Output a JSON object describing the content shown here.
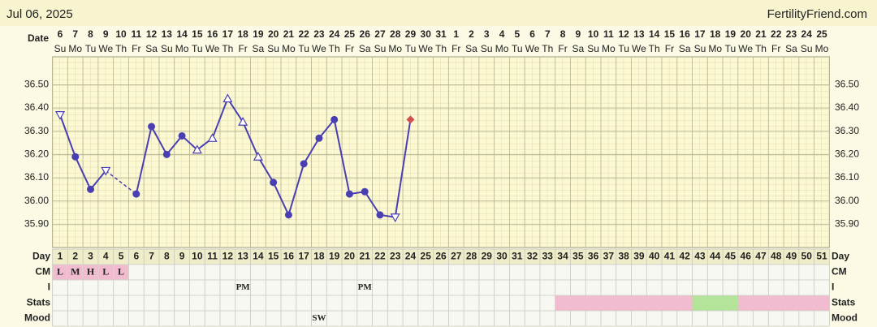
{
  "chart_data": {
    "type": "line",
    "title": "Jul 06, 2025",
    "site": "FertilityFriend.com",
    "date_label": "Date",
    "row_labels": [
      "Day",
      "CM",
      "I",
      "Stats",
      "Mood"
    ],
    "categories": [
      1,
      2,
      3,
      4,
      5,
      6,
      7,
      8,
      9,
      10,
      11,
      12,
      13,
      14,
      15,
      16,
      17,
      18,
      19,
      20,
      21,
      22,
      23,
      24,
      25,
      26,
      27,
      28,
      29,
      30,
      31,
      32,
      33,
      34,
      35,
      36,
      37,
      38,
      39,
      40,
      41,
      42,
      43,
      44,
      45,
      46,
      47,
      48,
      49,
      50,
      51
    ],
    "dates": [
      "6",
      "7",
      "8",
      "9",
      "10",
      "11",
      "12",
      "13",
      "14",
      "15",
      "16",
      "17",
      "18",
      "19",
      "20",
      "21",
      "22",
      "23",
      "24",
      "25",
      "26",
      "27",
      "28",
      "29",
      "30",
      "31",
      "1",
      "2",
      "3",
      "4",
      "5",
      "6",
      "7",
      "8",
      "9",
      "10",
      "11",
      "12",
      "13",
      "14",
      "15",
      "16",
      "17",
      "18",
      "19",
      "20",
      "21",
      "22",
      "23",
      "24",
      "25"
    ],
    "weekdays": [
      "Su",
      "Mo",
      "Tu",
      "We",
      "Th",
      "Fr",
      "Sa",
      "Su",
      "Mo",
      "Tu",
      "We",
      "Th",
      "Fr",
      "Sa",
      "Su",
      "Mo",
      "Tu",
      "We",
      "Th",
      "Fr",
      "Sa",
      "Su",
      "Mo",
      "Tu",
      "We",
      "Th",
      "Fr",
      "Sa",
      "Su",
      "Mo",
      "Tu",
      "We",
      "Th",
      "Fr",
      "Sa",
      "Su",
      "Mo",
      "Tu",
      "We",
      "Th",
      "Fr",
      "Sa",
      "Su",
      "Mo",
      "Tu",
      "We",
      "Th",
      "Fr",
      "Sa",
      "Su",
      "Mo"
    ],
    "series": [
      {
        "color": "#4a3fb2",
        "highlight_color": "#d0504f",
        "values": [
          36.37,
          36.19,
          36.05,
          36.13,
          null,
          36.03,
          36.32,
          36.2,
          36.28,
          36.22,
          36.27,
          36.44,
          36.34,
          36.19,
          36.08,
          35.94,
          36.16,
          36.27,
          36.35,
          36.03,
          36.04,
          35.94,
          35.93,
          36.35,
          null,
          null,
          null,
          null,
          null,
          null,
          null,
          null,
          null,
          null,
          null,
          null,
          null,
          null,
          null,
          null,
          null,
          null,
          null,
          null,
          null,
          null,
          null,
          null,
          null,
          null,
          null
        ],
        "markers": [
          "triangle-down",
          "circle",
          "circle",
          "triangle-down",
          null,
          "circle",
          "circle",
          "circle",
          "circle",
          "triangle-up",
          "triangle-up",
          "triangle-up",
          "triangle-up",
          "triangle-up",
          "circle",
          "circle",
          "circle",
          "circle",
          "circle",
          "circle",
          "circle",
          "circle",
          "triangle-down",
          "diamond",
          null,
          null,
          null,
          null,
          null,
          null,
          null,
          null,
          null,
          null,
          null,
          null,
          null,
          null,
          null,
          null,
          null,
          null,
          null,
          null,
          null,
          null,
          null,
          null,
          null,
          null,
          null
        ]
      }
    ],
    "ylim": [
      35.8,
      36.62
    ],
    "yticks": [
      {
        "value": 35.9,
        "label": "35.90"
      },
      {
        "value": 36.0,
        "label": "36.00"
      },
      {
        "value": 36.1,
        "label": "36.10"
      },
      {
        "value": 36.2,
        "label": "36.20"
      },
      {
        "value": 36.3,
        "label": "36.30"
      },
      {
        "value": 36.4,
        "label": "36.40"
      },
      {
        "value": 36.5,
        "label": "36.50"
      }
    ],
    "cm_color": "#f2bcd0",
    "cm": [
      "L",
      "M",
      "H",
      "L",
      "L",
      null,
      null,
      null,
      null,
      null,
      null,
      null,
      null,
      null,
      null,
      null,
      null,
      null,
      null,
      null,
      null,
      null,
      null,
      null,
      null,
      null,
      null,
      null,
      null,
      null,
      null,
      null,
      null,
      null,
      null,
      null,
      null,
      null,
      null,
      null,
      null,
      null,
      null,
      null,
      null,
      null,
      null,
      null,
      null,
      null,
      null
    ],
    "intercourse": [
      null,
      null,
      null,
      null,
      null,
      null,
      null,
      null,
      null,
      null,
      null,
      null,
      "PM",
      null,
      null,
      null,
      null,
      null,
      null,
      null,
      "PM",
      null,
      null,
      null,
      null,
      null,
      null,
      null,
      null,
      null,
      null,
      null,
      null,
      null,
      null,
      null,
      null,
      null,
      null,
      null,
      null,
      null,
      null,
      null,
      null,
      null,
      null,
      null,
      null,
      null,
      null
    ],
    "stats_colors": [
      null,
      null,
      null,
      null,
      null,
      null,
      null,
      null,
      null,
      null,
      null,
      null,
      null,
      null,
      null,
      null,
      null,
      null,
      null,
      null,
      null,
      null,
      null,
      null,
      null,
      null,
      null,
      null,
      null,
      null,
      null,
      null,
      null,
      "#f2bcd0",
      "#f2bcd0",
      "#f2bcd0",
      "#f2bcd0",
      "#f2bcd0",
      "#f2bcd0",
      "#f2bcd0",
      "#f2bcd0",
      "#f2bcd0",
      "#b4e39a",
      "#b4e39a",
      "#b4e39a",
      "#f2bcd0",
      "#f2bcd0",
      "#f2bcd0",
      "#f2bcd0",
      "#f2bcd0",
      "#f2bcd0"
    ],
    "mood": [
      null,
      null,
      null,
      null,
      null,
      null,
      null,
      null,
      null,
      null,
      null,
      null,
      null,
      null,
      null,
      null,
      null,
      "SW",
      null,
      null,
      null,
      null,
      null,
      null,
      null,
      null,
      null,
      null,
      null,
      null,
      null,
      null,
      null,
      null,
      null,
      null,
      null,
      null,
      null,
      null,
      null,
      null,
      null,
      null,
      null,
      null,
      null,
      null,
      null,
      null,
      null
    ]
  }
}
